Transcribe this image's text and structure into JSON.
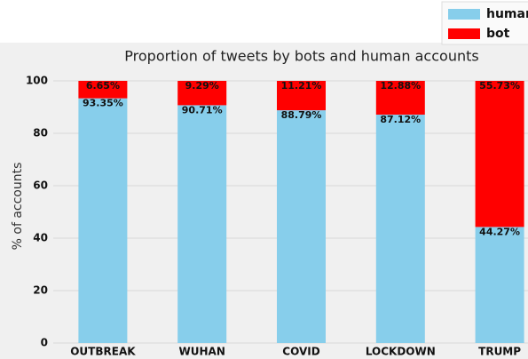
{
  "chart_data": {
    "type": "stacked_bar",
    "title": "Proportion of tweets by bots and human accounts",
    "y_label": "% of accounts",
    "categories": [
      "OUTBREAK",
      "WUHAN",
      "COVID",
      "LOCKDOWN",
      "TRUMP"
    ],
    "series": [
      {
        "name": "human",
        "color": "#87ceeb",
        "values": [
          93.35,
          90.71,
          88.79,
          87.12,
          44.27
        ],
        "value_labels": [
          "93.35%",
          "90.71%",
          "88.79%",
          "87.12%",
          "44.27%"
        ]
      },
      {
        "name": "bot",
        "color": "#ff0000",
        "values": [
          6.65,
          9.29,
          11.21,
          12.88,
          55.73
        ],
        "value_labels": [
          "6.65%",
          "9.29%",
          "11.21%",
          "12.88%",
          "55.73%"
        ]
      }
    ],
    "ylim": [
      0,
      100
    ],
    "yticks": [
      0,
      20,
      40,
      60,
      80,
      100
    ],
    "grid": true,
    "legend": "upper right"
  }
}
